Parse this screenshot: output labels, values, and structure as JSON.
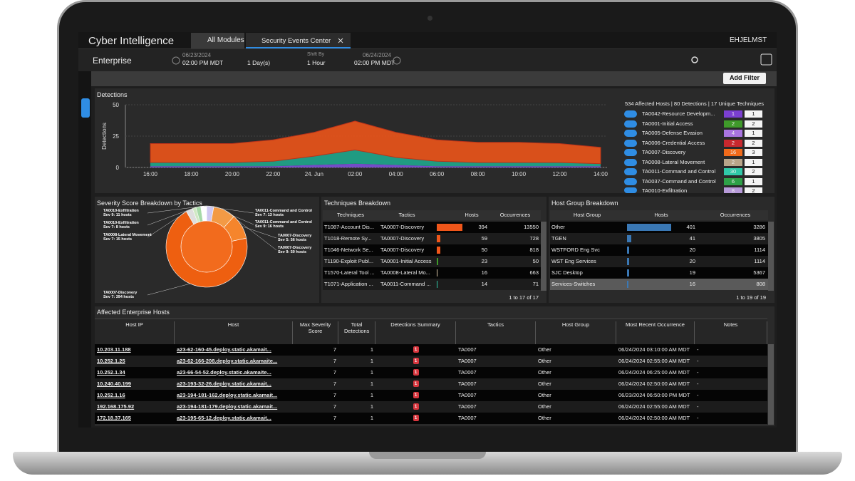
{
  "header": {
    "app_title": "Cyber Intelligence",
    "tabs": [
      "All Modules",
      "Security Events Center"
    ],
    "user": "EHJELMST"
  },
  "filters": {
    "scope": "Enterprise",
    "start_date": "06/23/2024",
    "start_time": "02:00 PM MDT",
    "range": "1 Day(s)",
    "shift_label": "Shift By",
    "shift": "1 Hour",
    "end_date": "06/24/2024",
    "end_time": "02:00 PM MDT",
    "add_filter": "Add Filter"
  },
  "chart_data": [
    {
      "type": "area",
      "title": "Detections",
      "ylabel": "Detections",
      "categories": [
        "16:00",
        "18:00",
        "20:00",
        "22:00",
        "24. Jun",
        "02:00",
        "04:00",
        "06:00",
        "08:00",
        "10:00",
        "12:00",
        "14:00"
      ],
      "series": [
        {
          "color": "#7b4fd6",
          "values": [
            1,
            1,
            1,
            1,
            2,
            3,
            2,
            1,
            1,
            1,
            1,
            1
          ]
        },
        {
          "color": "#1fa58a",
          "values": [
            3,
            3,
            3,
            4,
            7,
            11,
            6,
            4,
            3,
            3,
            3,
            2
          ]
        },
        {
          "color": "#e8541a",
          "values": [
            15,
            15,
            15,
            17,
            19,
            23,
            20,
            17,
            16,
            16,
            15,
            13
          ]
        }
      ],
      "ylim": [
        0,
        50
      ],
      "yticks": [
        0,
        25,
        50
      ],
      "grid": true
    },
    {
      "type": "pie",
      "title": "Severity Score Breakdown by Tactics",
      "categories": [
        "TA0011-Command and Control",
        "TA0007-Discovery",
        "TA0007-Discovery",
        "TA0007-Discovery",
        "TA0008-Lateral Movement",
        "TA0010-Exfiltration",
        "TA0010-Exfiltration",
        "TA0011-Command and Control"
      ],
      "values": [
        16,
        50,
        56,
        394,
        15,
        8,
        11,
        13
      ],
      "value_labels": [
        "Sev 9: 16 hosts",
        "Sev 9: 50 hosts",
        "Sev 5: 56 hosts",
        "Sev 7: 394 hosts",
        "Sev 7: 15 hosts",
        "Sev 7: 8 hosts",
        "Sev 9: 11 hosts",
        "Sev 7: 13 hosts"
      ],
      "colors": [
        "#cfc8f2",
        "#f39a45",
        "#f5852c",
        "#ee5f10",
        "#dedede",
        "#cfe8c4",
        "#a6d9a8",
        "#ffffff"
      ]
    }
  ],
  "detections_panel": {
    "summary": "534 Affected Hosts | 80 Detections | 17 Unique Techniques",
    "tactics": [
      {
        "name": "TA0042-Resource Developm...",
        "detections": 1,
        "hosts": 1,
        "color": "#7b3fd0"
      },
      {
        "name": "TA0001-Initial Access",
        "detections": 2,
        "hosts": 2,
        "color": "#3f9a2a"
      },
      {
        "name": "TA0005-Defense Evasion",
        "detections": 4,
        "hosts": 1,
        "color": "#a974e0"
      },
      {
        "name": "TA0006-Credential Access",
        "detections": 2,
        "hosts": 2,
        "color": "#c8282e"
      },
      {
        "name": "TA0007-Discovery",
        "detections": 16,
        "hosts": 3,
        "color": "#f06a1a"
      },
      {
        "name": "TA0008-Lateral Movement",
        "detections": 2,
        "hosts": 1,
        "color": "#b8a58a"
      },
      {
        "name": "TA0011-Command and Control",
        "detections": 30,
        "hosts": 2,
        "color": "#30c9a8"
      },
      {
        "name": "TA0037-Command and Control",
        "detections": 6,
        "hosts": 1,
        "color": "#2ea048"
      },
      {
        "name": "TA0010-Exfiltration",
        "detections": 8,
        "hosts": 2,
        "color": "#b79ad8"
      }
    ]
  },
  "techniques": {
    "title": "Techniques Breakdown",
    "columns": [
      "Techniques",
      "Tactics",
      "Hosts",
      "Occurrences"
    ],
    "rows": [
      [
        "T1087-Account Dis...",
        "TA0007-Discovery",
        394,
        13550
      ],
      [
        "T1018-Remote Sy...",
        "TA0007-Discovery",
        59,
        728
      ],
      [
        "T1046-Network Se...",
        "TA0007-Discovery",
        50,
        818
      ],
      [
        "T1190-Exploit Publ...",
        "TA0001-Initial Access",
        23,
        50
      ],
      [
        "T1570-Lateral Tool ...",
        "TA0008-Lateral Mo...",
        16,
        663
      ],
      [
        "T1071-Application ...",
        "TA0011-Command ...",
        14,
        71
      ]
    ],
    "bar_colors": [
      "#f0561a",
      "#f0561a",
      "#f0561a",
      "#3f9a2a",
      "#d6c3a4",
      "#30c9a8"
    ],
    "footer": "1 to 17 of 17"
  },
  "host_groups": {
    "title": "Host Group Breakdown",
    "columns": [
      "Host Group",
      "Hosts",
      "Occurrences"
    ],
    "rows": [
      [
        "Other",
        401,
        3286
      ],
      [
        "TGEN",
        41,
        3805
      ],
      [
        "WSTFORD Eng Svc",
        20,
        1114
      ],
      [
        "WST Eng Services",
        20,
        1114
      ],
      [
        "SJC Desktop",
        19,
        5367
      ],
      [
        "Services-Switches",
        16,
        808
      ]
    ],
    "footer": "1 to 19 of 19"
  },
  "hosts_table": {
    "title": "Affected Enterprise Hosts",
    "columns": [
      "Host IP",
      "Host",
      "Max Severity Score",
      "Total Detections",
      "Detections Summary",
      "Tactics",
      "Host Group",
      "Most Recent Occurrence",
      "Notes"
    ],
    "rows": [
      [
        "10.203.11.188",
        "a23-62-160-45.deploy.static.akamait...",
        7,
        1,
        1,
        "TA0007",
        "Other",
        "06/24/2024 03:10:00 AM MDT",
        "-"
      ],
      [
        "10.252.1.25",
        "a23-62-166-208.deploy.static.akamaite...",
        7,
        1,
        1,
        "TA0007",
        "Other",
        "06/24/2024 02:55:00 AM MDT",
        "-"
      ],
      [
        "10.252.1.34",
        "a23-66-54-52.deploy.static.akamaite...",
        7,
        1,
        1,
        "TA0007",
        "Other",
        "06/24/2024 06:25:00 AM MDT",
        "-"
      ],
      [
        "10.240.40.199",
        "a23-193-32-26.deploy.static.akamait...",
        7,
        1,
        1,
        "TA0007",
        "Other",
        "06/24/2024 02:50:00 AM MDT",
        "-"
      ],
      [
        "10.252.1.16",
        "a23-194-181-162.deploy.static.akamait...",
        7,
        1,
        1,
        "TA0007",
        "Other",
        "06/23/2024 06:50:00 PM MDT",
        "-"
      ],
      [
        "192.168.175.92",
        "a23-194-181-179.deploy.static.akamait...",
        7,
        1,
        1,
        "TA0007",
        "Other",
        "06/24/2024 02:55:00 AM MDT",
        "-"
      ],
      [
        "172.18.37.165",
        "a23-195-65-12.deploy.static.akamait...",
        7,
        1,
        1,
        "TA0007",
        "Other",
        "06/24/2024 02:50:00 AM MDT",
        "-"
      ]
    ]
  }
}
